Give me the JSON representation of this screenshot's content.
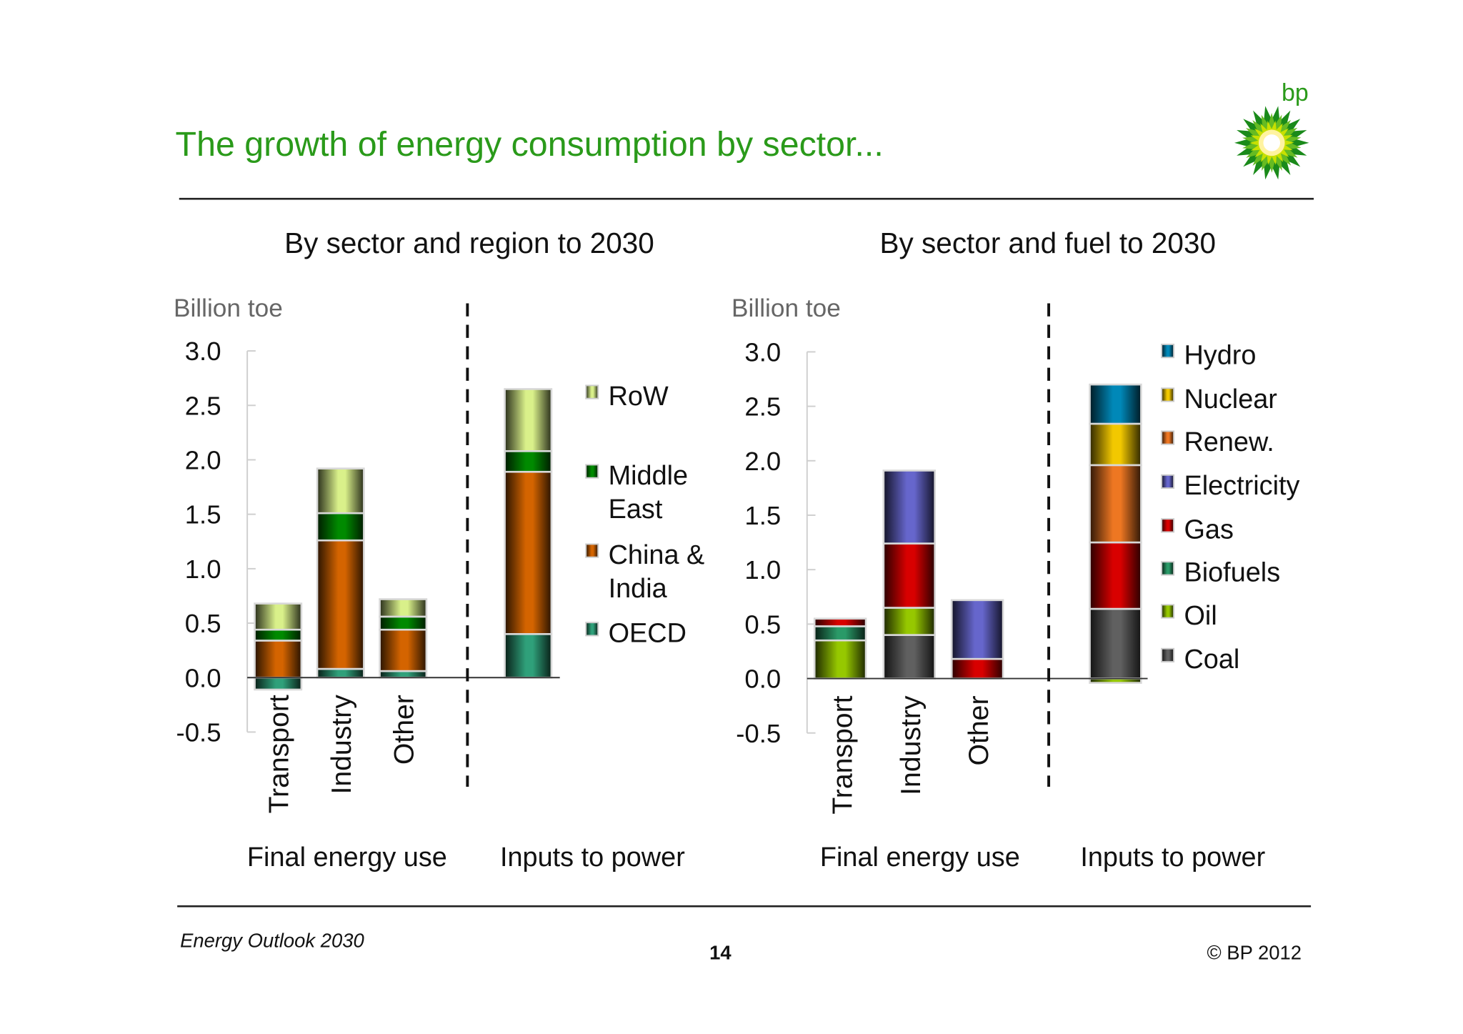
{
  "title": "The growth of energy consumption by sector...",
  "brand": {
    "logo_text": "bp",
    "colors": [
      "#2a9a1a",
      "#8ccf1a",
      "#ffe600"
    ]
  },
  "footer": {
    "left": "Energy Outlook 2030",
    "page": "14",
    "right": "© BP 2012"
  },
  "chart_data": [
    {
      "type": "bar",
      "stacked": true,
      "title": "By sector and region to 2030",
      "ylabel": "Billion toe",
      "ylim": [
        -0.5,
        3.0
      ],
      "yticks": [
        "3.0",
        "2.5",
        "2.0",
        "1.5",
        "1.0",
        "0.5",
        "0.0",
        "-0.5"
      ],
      "categories": [
        "Transport",
        "Industry",
        "Other",
        ""
      ],
      "groups": [
        "Final energy use",
        "Inputs to power"
      ],
      "series": [
        {
          "name": "OECD",
          "color": "#2fa07a",
          "values": [
            -0.11,
            0.08,
            0.06,
            0.4
          ]
        },
        {
          "name": "China & India",
          "color": "#d46400",
          "values": [
            0.34,
            1.18,
            0.38,
            1.49
          ]
        },
        {
          "name": "Middle East",
          "color": "#008a00",
          "values": [
            0.1,
            0.25,
            0.12,
            0.19
          ]
        },
        {
          "name": "RoW",
          "color": "#d9f08a",
          "values": [
            0.24,
            0.41,
            0.16,
            0.57
          ]
        }
      ],
      "legend": [
        "RoW",
        "Middle East",
        "China & India",
        "OECD"
      ],
      "legend_lines": [
        [
          "RoW"
        ],
        [
          "Middle",
          "East"
        ],
        [
          "China &",
          "India"
        ],
        [
          "OECD"
        ]
      ]
    },
    {
      "type": "bar",
      "stacked": true,
      "title": "By sector and fuel to 2030",
      "ylabel": "Billion toe",
      "ylim": [
        -0.5,
        3.0
      ],
      "yticks": [
        "3.0",
        "2.5",
        "2.0",
        "1.5",
        "1.0",
        "0.5",
        "0.0",
        "-0.5"
      ],
      "categories": [
        "Transport",
        "Industry",
        "Other",
        ""
      ],
      "groups": [
        "Final energy use",
        "Inputs to power"
      ],
      "series": [
        {
          "name": "Coal",
          "color": "#606060",
          "values": [
            0,
            0.4,
            0,
            0.64
          ]
        },
        {
          "name": "Oil",
          "color": "#96c800",
          "values": [
            0.35,
            0.25,
            0,
            -0.04
          ]
        },
        {
          "name": "Biofuels",
          "color": "#2a9a68",
          "values": [
            0.13,
            0,
            0,
            0
          ]
        },
        {
          "name": "Gas",
          "color": "#d80000",
          "values": [
            0.07,
            0.59,
            0.18,
            0.61
          ]
        },
        {
          "name": "Electricity",
          "color": "#6666cc",
          "values": [
            0,
            0.67,
            0.54,
            0
          ]
        },
        {
          "name": "Renew.",
          "color": "#ee7722",
          "values": [
            0,
            0,
            0,
            0.71
          ]
        },
        {
          "name": "Nuclear",
          "color": "#f2c800",
          "values": [
            0,
            0,
            0,
            0.38
          ]
        },
        {
          "name": "Hydro",
          "color": "#0088b8",
          "values": [
            0,
            0,
            0,
            0.36
          ]
        }
      ],
      "legend": [
        "Hydro",
        "Nuclear",
        "Renew.",
        "Electricity",
        "Gas",
        "Biofuels",
        "Oil",
        "Coal"
      ]
    }
  ]
}
